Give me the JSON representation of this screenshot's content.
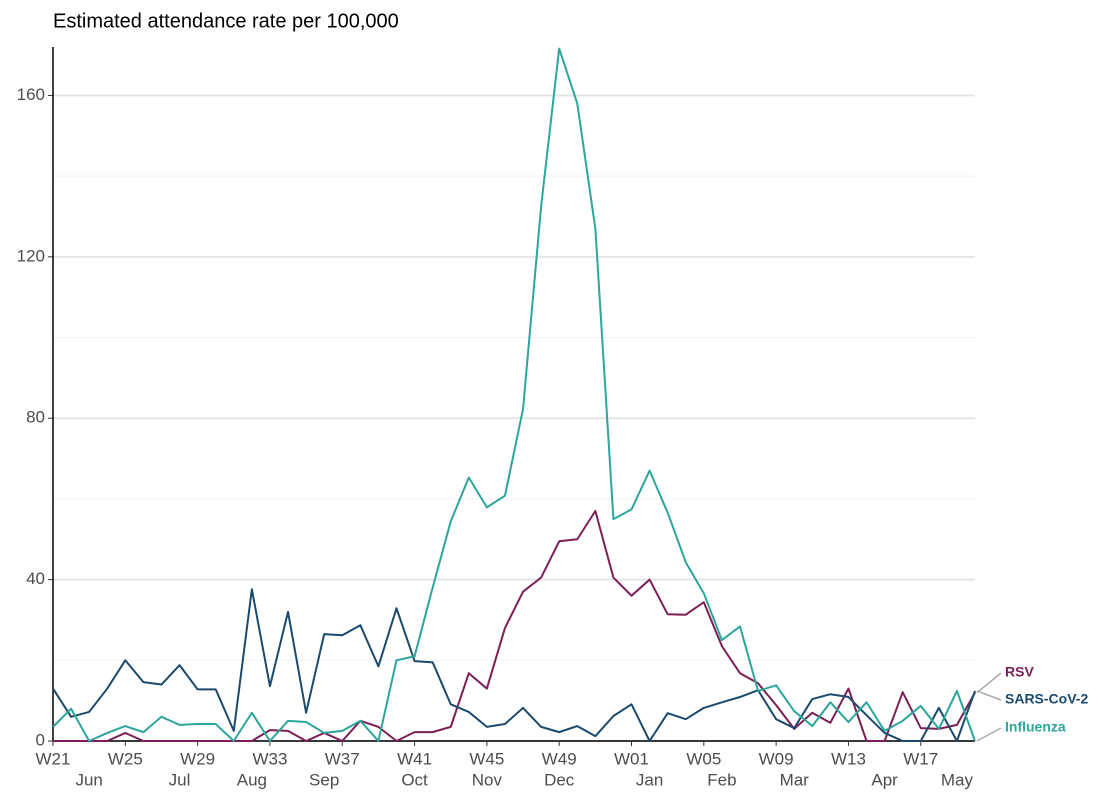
{
  "chart_data": {
    "type": "line",
    "title": "Estimated attendance rate per 100,000",
    "categories": [
      "W21",
      null,
      null,
      null,
      "W25",
      null,
      null,
      null,
      "W29",
      null,
      null,
      null,
      "W33",
      null,
      null,
      null,
      "W37",
      null,
      null,
      null,
      "W41",
      null,
      null,
      null,
      "W45",
      null,
      null,
      null,
      "W49",
      null,
      null,
      null,
      "W01",
      null,
      null,
      null,
      "W05",
      null,
      null,
      null,
      "W09",
      null,
      null,
      null,
      "W13",
      null,
      null,
      null,
      "W17",
      null,
      null,
      null
    ],
    "month_categories": [
      null,
      null,
      "Jun",
      null,
      null,
      null,
      null,
      "Jul",
      null,
      null,
      null,
      "Aug",
      null,
      null,
      null,
      "Sep",
      null,
      null,
      null,
      null,
      "Oct",
      null,
      null,
      null,
      "Nov",
      null,
      null,
      null,
      "Dec",
      null,
      null,
      null,
      null,
      "Jan",
      null,
      null,
      null,
      "Feb",
      null,
      null,
      null,
      "Mar",
      null,
      null,
      null,
      null,
      "Apr",
      null,
      null,
      null,
      "May",
      null
    ],
    "series": [
      {
        "name": "RSV",
        "color": "#7e1e56",
        "values": [
          0,
          0,
          0,
          0,
          2,
          0,
          0,
          0,
          0,
          0,
          0,
          0,
          2.7,
          2.5,
          0,
          2,
          0,
          5,
          3.5,
          0,
          2.2,
          2.2,
          3.5,
          16.8,
          13,
          28,
          37,
          40.5,
          49.5,
          50,
          57,
          40.5,
          36,
          40,
          31.4,
          31.3,
          34.4,
          23.5,
          16.8,
          14.3,
          8.9,
          3,
          7,
          4.5,
          13,
          0,
          0,
          12.1,
          3.2,
          3,
          4,
          12
        ]
      },
      {
        "name": "SARS-CoV-2",
        "color": "#1b4a6e",
        "values": [
          13,
          6,
          7.2,
          13,
          20,
          14.6,
          14,
          18.8,
          12.8,
          12.8,
          2.5,
          37.6,
          13.6,
          32,
          7,
          26.5,
          26.2,
          28.7,
          18.5,
          32.9,
          19.8,
          19.5,
          9.1,
          7.2,
          3.5,
          4.2,
          8.2,
          3.5,
          2.2,
          3.7,
          1.2,
          6.2,
          9.1,
          0,
          6.9,
          5.4,
          8.2,
          9.6,
          10.9,
          12.6,
          5.4,
          3.2,
          10.4,
          11.6,
          10.9,
          6.4,
          2,
          0,
          0,
          8.2,
          0,
          12.4
        ]
      },
      {
        "name": "Influenza",
        "color": "#2ca59b",
        "values": [
          3.5,
          8,
          0,
          2,
          3.7,
          2.2,
          6,
          4,
          4.2,
          4.2,
          0,
          7,
          0,
          5,
          4.7,
          2,
          2.5,
          5,
          0,
          20,
          21,
          38,
          54.4,
          65.3,
          57.9,
          60.8,
          82.3,
          132.5,
          171.6,
          158,
          127,
          55,
          57.4,
          67,
          56.6,
          44.3,
          36.6,
          25,
          28.4,
          12.4,
          13.8,
          7.4,
          3.7,
          9.6,
          4.7,
          9.6,
          2.5,
          5,
          8.7,
          3,
          12.4,
          0
        ]
      }
    ],
    "ylim": [
      0,
      172
    ],
    "yticks": [
      0,
      40,
      80,
      120,
      160
    ],
    "minor_yticks": [
      20,
      60,
      100,
      140
    ],
    "grid": true
  }
}
